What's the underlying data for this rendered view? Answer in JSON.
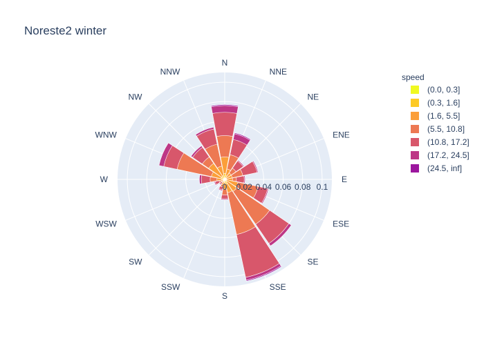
{
  "chart_data": {
    "type": "barpolar",
    "title": "Noreste2 winter",
    "directions": [
      "N",
      "NNE",
      "NE",
      "ENE",
      "E",
      "ESE",
      "SE",
      "SSE",
      "S",
      "SSW",
      "SW",
      "WSW",
      "W",
      "WNW",
      "NW",
      "NNW"
    ],
    "radial_ticks": [
      "0",
      "0.02",
      "0.04",
      "0.06",
      "0.08",
      "0.1"
    ],
    "radial_range": [
      0,
      0.11
    ],
    "legend_title": "speed",
    "series": [
      {
        "name": "(0.0, 0.3]",
        "color": "#f0f921",
        "values": [
          0.001,
          0.001,
          0.001,
          0.001,
          0.001,
          0.001,
          0.001,
          0.001,
          0.001,
          0.001,
          0.001,
          0.001,
          0.001,
          0.001,
          0.001,
          0.001
        ]
      },
      {
        "name": "(0.3, 1.6]",
        "color": "#fdca26",
        "values": [
          0.006,
          0.004,
          0.002,
          0.002,
          0.002,
          0.002,
          0.003,
          0.005,
          0.003,
          0.003,
          0.002,
          0.002,
          0.003,
          0.004,
          0.004,
          0.004
        ]
      },
      {
        "name": "(1.6, 5.5]",
        "color": "#fb9f3a",
        "values": [
          0.023,
          0.011,
          0.008,
          0.008,
          0.008,
          0.014,
          0.015,
          0.014,
          0.01,
          0.006,
          0.003,
          0.004,
          0.008,
          0.014,
          0.02,
          0.014
        ]
      },
      {
        "name": "(5.5, 10.8]",
        "color": "#ed7953",
        "values": [
          0.045,
          0.026,
          0.014,
          0.019,
          0.012,
          0.035,
          0.056,
          0.058,
          0.016,
          0.008,
          0.004,
          0.006,
          0.015,
          0.05,
          0.028,
          0.037
        ]
      },
      {
        "name": "(10.8, 17.2]",
        "color": "#d8576b",
        "values": [
          0.069,
          0.042,
          0.023,
          0.034,
          0.02,
          0.045,
          0.08,
          0.103,
          0.02,
          0.011,
          0.006,
          0.01,
          0.024,
          0.064,
          0.04,
          0.053
        ]
      },
      {
        "name": "(17.2, 24.5]",
        "color": "#bd3786",
        "values": [
          0.076,
          0.048,
          0.024,
          0.035,
          0.021,
          0.046,
          0.083,
          0.106,
          0.021,
          0.012,
          0.007,
          0.011,
          0.026,
          0.069,
          0.042,
          0.055
        ]
      },
      {
        "name": "(24.5, inf]",
        "color": "#9c179e",
        "values": [
          0.077,
          0.049,
          0.024,
          0.035,
          0.021,
          0.046,
          0.083,
          0.107,
          0.021,
          0.012,
          0.007,
          0.011,
          0.026,
          0.069,
          0.042,
          0.055
        ]
      }
    ]
  }
}
